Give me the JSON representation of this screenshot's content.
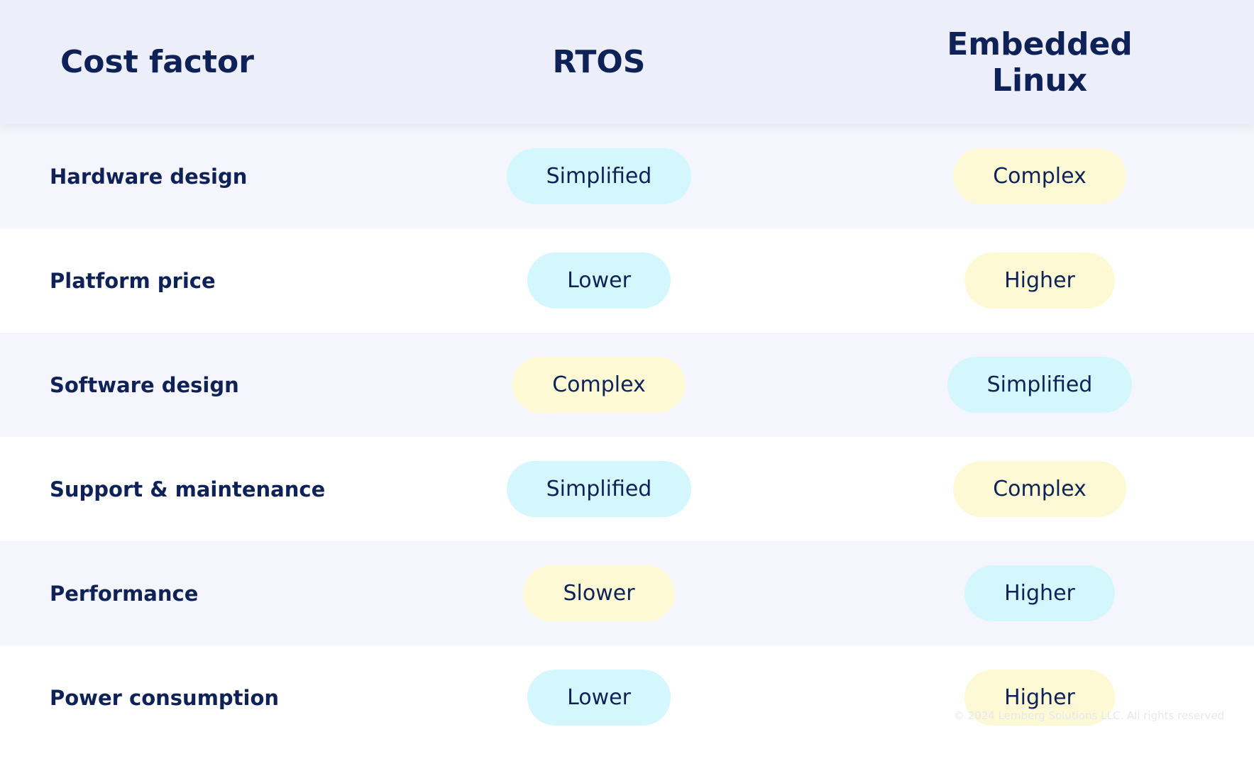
{
  "header": {
    "columns": [
      "Cost factor",
      "RTOS",
      "Embedded Linux"
    ]
  },
  "table": {
    "rows": [
      {
        "label": "Hardware design",
        "cells": [
          {
            "text": "Simplified",
            "color": "#d3f7fc"
          },
          {
            "text": "Complex",
            "color": "#fdf9d5"
          }
        ]
      },
      {
        "label": "Platform price",
        "cells": [
          {
            "text": "Lower",
            "color": "#d3f7fc"
          },
          {
            "text": "Higher",
            "color": "#fdf9d5"
          }
        ]
      },
      {
        "label": "Software design",
        "cells": [
          {
            "text": "Complex",
            "color": "#fdf9d5"
          },
          {
            "text": "Simplified",
            "color": "#d3f7fc"
          }
        ]
      },
      {
        "label": "Support & maintenance",
        "cells": [
          {
            "text": "Simplified",
            "color": "#d3f7fc"
          },
          {
            "text": "Complex",
            "color": "#fdf9d5"
          }
        ]
      },
      {
        "label": "Performance",
        "cells": [
          {
            "text": "Slower",
            "color": "#fdf9d5"
          },
          {
            "text": "Higher",
            "color": "#d3f7fc"
          }
        ]
      },
      {
        "label": "Power consumption",
        "cells": [
          {
            "text": "Lower",
            "color": "#d3f7fc"
          },
          {
            "text": "Higher",
            "color": "#fdf9d5"
          }
        ]
      }
    ]
  },
  "footer": {
    "copyright": "© 2024 Lemberg Solutions LLC. All rights reserved"
  }
}
